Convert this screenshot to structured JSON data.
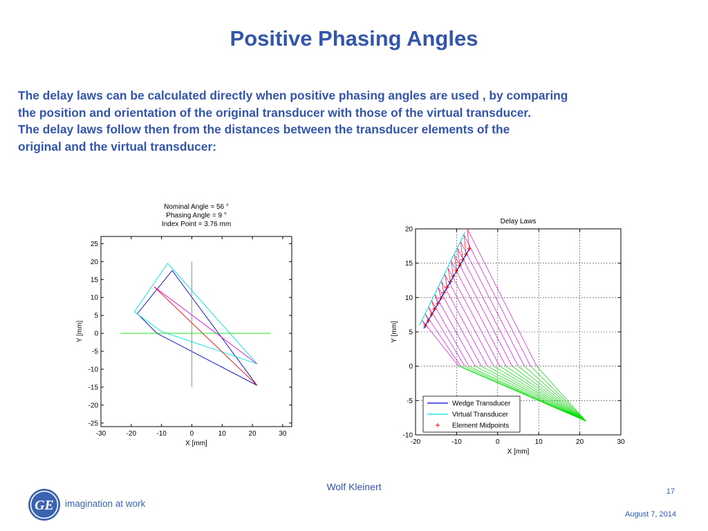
{
  "slide": {
    "title": "Positive Phasing Angles",
    "paragraph_lines": [
      "The delay laws can be calculated directly when positive phasing angles are used , by comparing",
      "the position and orientation of the original transducer with those of the virtual transducer.",
      "The delay laws follow then from the distances between the transducer elements of the",
      "original and the virtual transducer:"
    ]
  },
  "footer": {
    "author": "Wolf Kleinert",
    "page_number": "17",
    "date": "August 7, 2014",
    "tagline": "imagination at work",
    "logo_icon": "ge-monogram-icon",
    "brand_color": "#3355aa"
  },
  "chart_data": [
    {
      "type": "line",
      "title_lines": [
        "Nominal Angle  =   56 °",
        "Phasing Angle  =    9 °",
        "Index Point    = 3.76 mm"
      ],
      "xlabel": "X [mm]",
      "ylabel": "Y [mm]",
      "xlim": [
        -30,
        33
      ],
      "ylim": [
        -26,
        27
      ],
      "xticks": [
        -30,
        -20,
        -10,
        0,
        10,
        20,
        30
      ],
      "yticks": [
        -25,
        -20,
        -15,
        -10,
        -5,
        0,
        5,
        10,
        15,
        20,
        25
      ],
      "grid": false,
      "series": [
        {
          "color": "#0000cc",
          "points": [
            [
              -18,
              5.5
            ],
            [
              -6.5,
              17.5
            ],
            [
              21.5,
              -14.5
            ],
            [
              -11.5,
              0
            ],
            [
              -18,
              5.5
            ]
          ]
        },
        {
          "color": "#00e5e5",
          "points": [
            [
              -19,
              6
            ],
            [
              -8,
              19.5
            ],
            [
              21.5,
              -8.5
            ],
            [
              -10,
              0.5
            ],
            [
              -19,
              6
            ]
          ]
        },
        {
          "color": "#ee00ee",
          "points": [
            [
              -12.5,
              13
            ],
            [
              21.5,
              -8.5
            ]
          ]
        },
        {
          "color": "#ff0000",
          "points": [
            [
              -12.5,
              13
            ],
            [
              21.5,
              -14.5
            ]
          ]
        },
        {
          "color": "#00dd00",
          "points": [
            [
              -23.5,
              0
            ],
            [
              26,
              0
            ]
          ]
        },
        {
          "color": "#00dd00",
          "points": [
            [
              0,
              20
            ],
            [
              0,
              -15
            ]
          ]
        }
      ]
    },
    {
      "type": "line",
      "title": "Delay Laws",
      "xlabel": "X [mm]",
      "ylabel": "Y [mm]",
      "xlim": [
        -20,
        30
      ],
      "ylim": [
        -10,
        20
      ],
      "xticks": [
        -20,
        -10,
        0,
        10,
        20,
        30
      ],
      "yticks": [
        -10,
        -5,
        0,
        5,
        10,
        15,
        20
      ],
      "grid": true,
      "legend_placement": "bottom-left",
      "legend": [
        {
          "label": "Wedge Transducer",
          "style": "line",
          "color": "#0000cc"
        },
        {
          "label": "Virtual Transducer",
          "style": "line",
          "color": "#00e5e5"
        },
        {
          "label": "Element Midpoints",
          "style": "marker",
          "color": "#ff0000"
        }
      ],
      "wedge_transducer": {
        "color": "#0000cc",
        "points": [
          [
            -18,
            5.5
          ],
          [
            -7,
            17
          ]
        ]
      },
      "virtual_transducer": {
        "color": "#00e5e5",
        "points": [
          [
            -19,
            6
          ],
          [
            -8,
            19.5
          ]
        ]
      },
      "element_midpoints": {
        "color": "#cc0000",
        "points": [
          [
            -17.6,
            5.9
          ],
          [
            -16.9,
            6.6
          ],
          [
            -16.1,
            7.5
          ],
          [
            -15.4,
            8.3
          ],
          [
            -14.6,
            9.1
          ],
          [
            -13.8,
            9.9
          ],
          [
            -13.1,
            10.7
          ],
          [
            -12.3,
            11.5
          ],
          [
            -11.5,
            12.3
          ],
          [
            -10.8,
            13.1
          ],
          [
            -10.0,
            13.9
          ],
          [
            -9.2,
            14.7
          ],
          [
            -8.5,
            15.5
          ],
          [
            -7.7,
            16.3
          ],
          [
            -6.9,
            17.1
          ]
        ]
      },
      "virtual_element_points": [
        [
          -18.4,
          6.7
        ],
        [
          -17.6,
          7.6
        ],
        [
          -16.8,
          8.6
        ],
        [
          -16.1,
          9.6
        ],
        [
          -15.3,
          10.5
        ],
        [
          -14.5,
          11.5
        ],
        [
          -13.7,
          12.4
        ],
        [
          -12.9,
          13.4
        ],
        [
          -12.1,
          14.3
        ],
        [
          -11.3,
          15.3
        ],
        [
          -10.5,
          16.2
        ],
        [
          -9.8,
          17.2
        ],
        [
          -9.0,
          18.1
        ],
        [
          -8.2,
          19.1
        ],
        [
          -7.4,
          20.0
        ]
      ],
      "upper_path_endpoints": [
        [
          -9.5,
          0
        ],
        [
          -9,
          0
        ],
        [
          -8,
          0
        ],
        [
          -7,
          0
        ],
        [
          -5.5,
          0
        ],
        [
          -4,
          0
        ],
        [
          -2.5,
          0
        ],
        [
          -1,
          0
        ],
        [
          0.5,
          0
        ],
        [
          2,
          0
        ],
        [
          3.5,
          0
        ],
        [
          5,
          0
        ],
        [
          6.5,
          0
        ],
        [
          8,
          0
        ],
        [
          9.5,
          0
        ]
      ],
      "focal_point": [
        21.5,
        -8
      ],
      "series_colors": {
        "delay_paths": "#ee00ee",
        "reference_paths": "#ff0000",
        "refracted_paths": "#00dd00"
      }
    }
  ]
}
